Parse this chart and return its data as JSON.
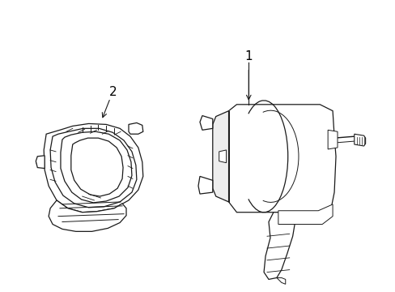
{
  "bg_color": "#ffffff",
  "line_color": "#1a1a1a",
  "label_color": "#000000",
  "fig_width": 4.89,
  "fig_height": 3.6,
  "dpi": 100,
  "label1": "1",
  "label2": "2"
}
